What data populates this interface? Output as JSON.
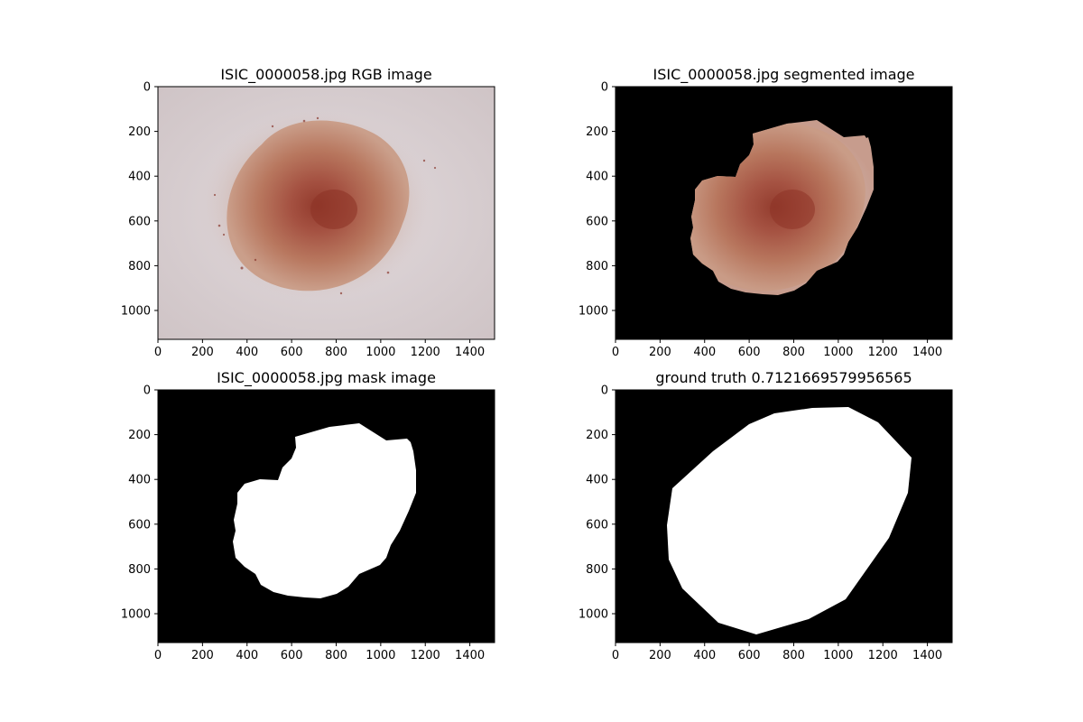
{
  "figure": {
    "panels": [
      {
        "id": "rgb",
        "title": "ISIC_0000058.jpg RGB image",
        "kind": "rgb",
        "x_ticks": [
          "0",
          "200",
          "400",
          "600",
          "800",
          "1000",
          "1200",
          "1400"
        ],
        "y_ticks": [
          "0",
          "200",
          "400",
          "600",
          "800",
          "1000"
        ]
      },
      {
        "id": "segmented",
        "title": "ISIC_0000058.jpg segmented image",
        "kind": "segmented",
        "x_ticks": [
          "0",
          "200",
          "400",
          "600",
          "800",
          "1000",
          "1200",
          "1400"
        ],
        "y_ticks": [
          "0",
          "200",
          "400",
          "600",
          "800",
          "1000"
        ]
      },
      {
        "id": "mask",
        "title": "ISIC_0000058.jpg mask image",
        "kind": "mask",
        "x_ticks": [
          "0",
          "200",
          "400",
          "600",
          "800",
          "1000",
          "1200",
          "1400"
        ],
        "y_ticks": [
          "0",
          "200",
          "400",
          "600",
          "800",
          "1000"
        ]
      },
      {
        "id": "groundtruth",
        "title": "ground truth 0.7121669579956565",
        "kind": "groundtruth",
        "x_ticks": [
          "0",
          "200",
          "400",
          "600",
          "800",
          "1000",
          "1200",
          "1400"
        ],
        "y_ticks": [
          "0",
          "200",
          "400",
          "600",
          "800",
          "1000"
        ]
      }
    ],
    "colors": {
      "skin": "#dcd3d6",
      "lesion_outer": "#c2866d",
      "lesion_core": "#8e3326",
      "background": "#000000",
      "mask": "#ffffff"
    }
  }
}
